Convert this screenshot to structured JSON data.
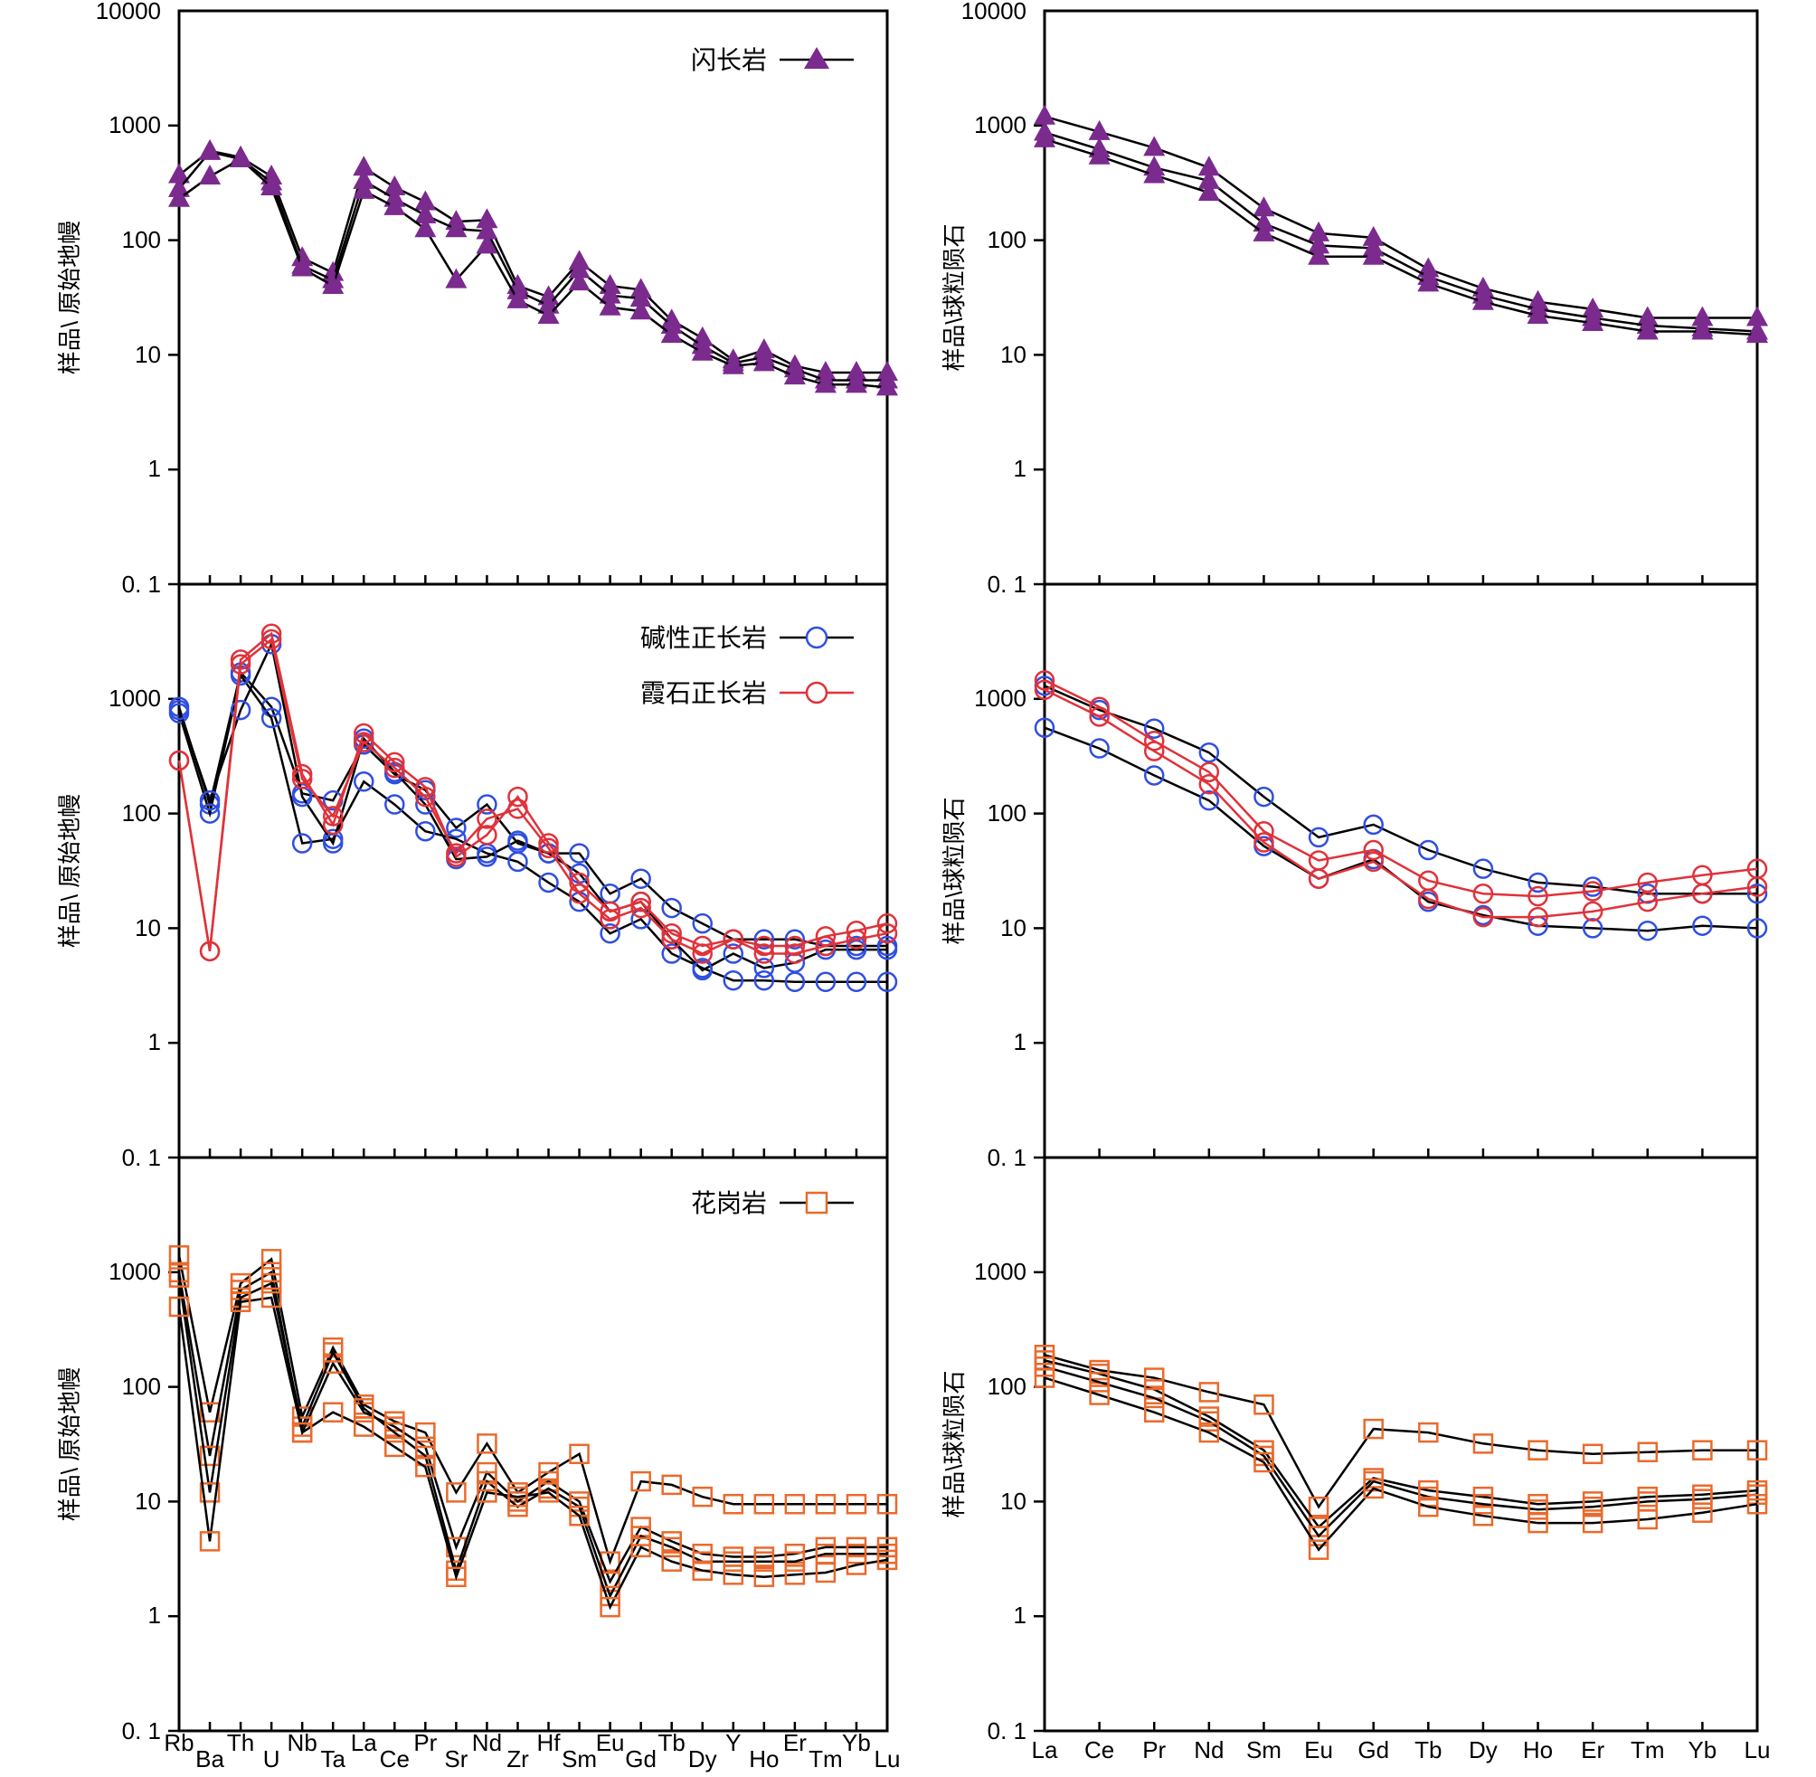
{
  "chart_data": {
    "type": "line",
    "scale": "log",
    "ylim": [
      0.1,
      10000
    ],
    "ytick_labels": [
      "10000",
      "1000",
      "100",
      "10",
      "1",
      "0. 1"
    ],
    "ytick_labels_mid": [
      "1000",
      "100",
      "10",
      "1",
      "0. 1"
    ],
    "ylabel_pm": "样品\\ 原始地幔",
    "ylabel_ch": "样品\\球粒陨石",
    "spider_categories": [
      "Rb",
      "Ba",
      "Th",
      "U",
      "Nb",
      "Ta",
      "La",
      "Ce",
      "Pr",
      "Sr",
      "Nd",
      "Zr",
      "Hf",
      "Sm",
      "Eu",
      "Gd",
      "Tb",
      "Dy",
      "Y",
      "Ho",
      "Er",
      "Tm",
      "Yb",
      "Lu"
    ],
    "ree_categories": [
      "La",
      "Ce",
      "Pr",
      "Nd",
      "Sm",
      "Eu",
      "Gd",
      "Tb",
      "Dy",
      "Ho",
      "Er",
      "Tm",
      "Yb",
      "Lu"
    ],
    "colors": {
      "diorite": "#7b2a8e",
      "alkali": "#2f4fe0",
      "nepheline": "#e0323a",
      "granite": "#ea6a2c",
      "line": "#000000"
    },
    "legend": {
      "diorite": "闪长岩",
      "alkali": "碱性正长岩",
      "nepheline": "霞石正长岩",
      "granite": "花岗岩"
    },
    "panels": [
      {
        "id": "diorite-spider",
        "row": 0,
        "col": 0,
        "kind": "spider",
        "series": [
          {
            "group": "diorite",
            "values": [
              370,
              600,
              530,
              360,
              70,
              52,
              430,
              290,
              215,
              145,
              150,
              40,
              32,
              65,
              40,
              37,
              20,
              14,
              9,
              11,
              8,
              7,
              7,
              7
            ]
          },
          {
            "group": "diorite",
            "values": [
              280,
              590,
              510,
              320,
              60,
              45,
              330,
              230,
              165,
              125,
              120,
              36,
              27,
              55,
              33,
              31,
              18,
              12,
              8.5,
              9.5,
              7.5,
              6,
              6,
              6
            ]
          },
          {
            "group": "diorite",
            "values": [
              230,
              360,
              510,
              290,
              57,
              40,
              270,
              195,
              125,
              45,
              90,
              30,
              22,
              43,
              26,
              24,
              15,
              10.5,
              8,
              8.5,
              6.5,
              5.5,
              5.5,
              5.2
            ]
          }
        ]
      },
      {
        "id": "diorite-ree",
        "row": 0,
        "col": 1,
        "kind": "ree",
        "series": [
          {
            "group": "diorite",
            "values": [
              1200,
              880,
              640,
              430,
              190,
              115,
              105,
              56,
              38,
              29,
              25,
              21,
              21,
              21
            ]
          },
          {
            "group": "diorite",
            "values": [
              870,
              620,
              430,
              330,
              140,
              90,
              85,
              48,
              33,
              25,
              21,
              18,
              17,
              16
            ]
          },
          {
            "group": "diorite",
            "values": [
              760,
              540,
              370,
              260,
              115,
              72,
              72,
              42,
              29,
              22,
              19,
              16,
              16,
              15
            ]
          }
        ]
      },
      {
        "id": "syenite-spider",
        "row": 1,
        "col": 0,
        "kind": "spider",
        "series": [
          {
            "group": "alkali",
            "values": [
              850,
              120,
              1700,
              850,
              150,
              130,
              400,
              220,
              160,
              75,
              120,
              55,
              45,
              45,
              20,
              27,
              15,
              11,
              8,
              8,
              8,
              7,
              7,
              7
            ]
          },
          {
            "group": "alkali",
            "values": [
              750,
              100,
              1600,
              680,
              55,
              60,
              190,
              120,
              70,
              60,
              45,
              38,
              25,
              17,
              9,
              12,
              6,
              4.5,
              3.5,
              3.5,
              3.4,
              3.4,
              3.4,
              3.4
            ]
          },
          {
            "group": "alkali",
            "values": [
              800,
              130,
              800,
              3000,
              140,
              55,
              450,
              230,
              120,
              40,
              42,
              58,
              45,
              30,
              14,
              17,
              8,
              4.3,
              6,
              4.5,
              5,
              6.5,
              6.5,
              6.5
            ]
          },
          {
            "group": "nepheline",
            "values": [
              290,
              6.3,
              2200,
              3700,
              220,
              80,
              500,
              280,
              170,
              42,
              65,
              140,
              55,
              25,
              14,
              17,
              9,
              7,
              8,
              7,
              7,
              8.5,
              9.5,
              11
            ]
          },
          {
            "group": "nepheline",
            "values": [
              290,
              6.3,
              2000,
              3300,
              200,
              95,
              420,
              250,
              140,
              45,
              90,
              110,
              50,
              20,
              12,
              15,
              8,
              6,
              8,
              6,
              6,
              7,
              8,
              9
            ]
          }
        ]
      },
      {
        "id": "syenite-ree",
        "row": 1,
        "col": 1,
        "kind": "ree",
        "series": [
          {
            "group": "alkali",
            "values": [
              1300,
              800,
              550,
              340,
              140,
              62,
              80,
              48,
              33,
              25,
              23,
              20,
              20,
              20
            ]
          },
          {
            "group": "alkali",
            "values": [
              560,
              370,
              215,
              130,
              52,
              27,
              40,
              17,
              13,
              10.5,
              10,
              9.5,
              10.5,
              10
            ]
          },
          {
            "group": "nepheline",
            "values": [
              1450,
              850,
              430,
              230,
              70,
              39,
              48,
              26,
              20,
              19,
              21,
              25,
              29,
              33
            ]
          },
          {
            "group": "nepheline",
            "values": [
              1200,
              700,
              350,
              180,
              56,
              27,
              38,
              18,
              12.5,
              12.5,
              14,
              17,
              20,
              23
            ]
          }
        ]
      },
      {
        "id": "granite-spider",
        "row": 2,
        "col": 0,
        "kind": "spider",
        "series": [
          {
            "group": "granite",
            "values": [
              1400,
              60,
              800,
              1300,
              55,
              220,
              70,
              50,
              40,
              12,
              32,
              12,
              18,
              26,
              3,
              15,
              14,
              11,
              9.5,
              9.5,
              9.5,
              9.5,
              9.5,
              9.5
            ]
          },
          {
            "group": "granite",
            "values": [
              1000,
              25,
              700,
              1000,
              40,
              160,
              60,
              45,
              30,
              4,
              18,
              10,
              15,
              10,
              2,
              6,
              4.5,
              3.5,
              3.3,
              3.3,
              3.5,
              4,
              4,
              4
            ]
          },
          {
            "group": "granite",
            "values": [
              900,
              12,
              600,
              800,
              45,
              200,
              65,
              40,
              25,
              2.5,
              15,
              9,
              13,
              9,
              1.5,
              5,
              4,
              3,
              3,
              3,
              3,
              3.5,
              3.5,
              3.5
            ]
          },
          {
            "group": "granite",
            "values": [
              500,
              4.5,
              550,
              600,
              40,
              60,
              45,
              30,
              20,
              2.2,
              12,
              11,
              12,
              7.5,
              1.2,
              4,
              3,
              2.5,
              2.3,
              2.2,
              2.3,
              2.4,
              2.8,
              3.1
            ]
          }
        ]
      },
      {
        "id": "granite-ree",
        "row": 2,
        "col": 1,
        "kind": "ree",
        "series": [
          {
            "group": "granite",
            "values": [
              190,
              140,
              120,
              90,
              70,
              9,
              43,
              40,
              32,
              28,
              26,
              27,
              28,
              28
            ]
          },
          {
            "group": "granite",
            "values": [
              170,
              130,
              95,
              55,
              28,
              6,
              16,
              12.5,
              11,
              9.5,
              10,
              11,
              11.5,
              12.5
            ]
          },
          {
            "group": "granite",
            "values": [
              150,
              110,
              80,
              50,
              25,
              5,
              15,
              11,
              9.5,
              8.5,
              9,
              10,
              10.5,
              11.5
            ]
          },
          {
            "group": "granite",
            "values": [
              120,
              85,
              60,
              40,
              22,
              3.8,
              13,
              9,
              7.5,
              6.5,
              6.5,
              7,
              8,
              9.5
            ]
          }
        ]
      }
    ]
  }
}
